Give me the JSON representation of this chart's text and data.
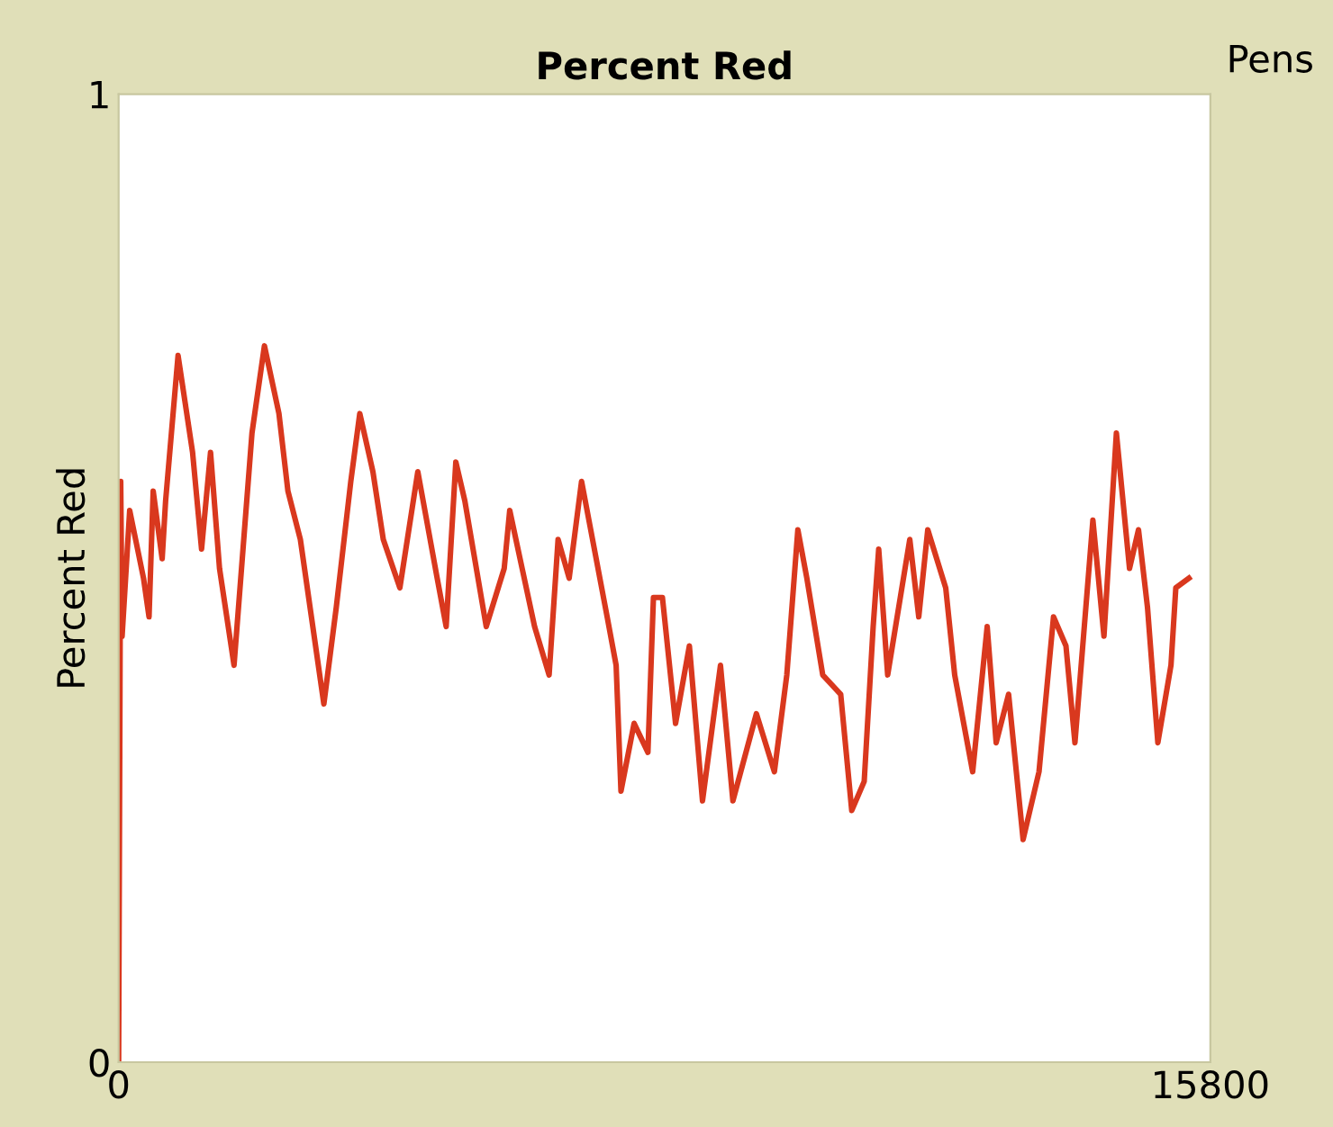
{
  "chart_data": {
    "type": "line",
    "title": "Percent Red",
    "ylabel": "Percent Red",
    "annotations": [
      "Pens"
    ],
    "x": [
      0,
      30,
      50,
      160,
      360,
      440,
      500,
      630,
      680,
      860,
      1070,
      1200,
      1330,
      1460,
      1670,
      1800,
      1930,
      2110,
      2320,
      2450,
      2630,
      2790,
      2970,
      3150,
      3360,
      3490,
      3680,
      3830,
      4070,
      4330,
      4610,
      4740,
      4880,
      5010,
      5320,
      5580,
      5660,
      5840,
      6020,
      6230,
      6360,
      6520,
      6700,
      7070,
      7200,
      7270,
      7460,
      7660,
      7740,
      7870,
      8060,
      8260,
      8450,
      8710,
      8890,
      9230,
      9490,
      9670,
      9830,
      9960,
      10190,
      10450,
      10610,
      10790,
      10920,
      11000,
      11130,
      11450,
      11580,
      11710,
      11970,
      12100,
      12360,
      12570,
      12700,
      12880,
      13090,
      13320,
      13530,
      13710,
      13840,
      14100,
      14260,
      14440,
      14630,
      14760,
      14890,
      15040,
      15230,
      15300,
      15490
    ],
    "series": [
      {
        "color": "#d9381e",
        "values": [
          0,
          0.6,
          0.44,
          0.57,
          0.5,
          0.46,
          0.59,
          0.52,
          0.58,
          0.73,
          0.63,
          0.53,
          0.63,
          0.51,
          0.41,
          0.53,
          0.65,
          0.74,
          0.67,
          0.59,
          0.54,
          0.46,
          0.37,
          0.47,
          0.6,
          0.67,
          0.61,
          0.54,
          0.49,
          0.61,
          0.5,
          0.45,
          0.62,
          0.58,
          0.45,
          0.51,
          0.57,
          0.51,
          0.45,
          0.4,
          0.54,
          0.5,
          0.6,
          0.46,
          0.41,
          0.28,
          0.35,
          0.32,
          0.48,
          0.48,
          0.35,
          0.43,
          0.27,
          0.41,
          0.27,
          0.36,
          0.3,
          0.4,
          0.55,
          0.5,
          0.4,
          0.38,
          0.26,
          0.29,
          0.45,
          0.53,
          0.4,
          0.54,
          0.46,
          0.55,
          0.49,
          0.4,
          0.3,
          0.45,
          0.33,
          0.38,
          0.23,
          0.3,
          0.46,
          0.43,
          0.33,
          0.56,
          0.44,
          0.65,
          0.51,
          0.55,
          0.47,
          0.33,
          0.41,
          0.49,
          0.5
        ]
      }
    ],
    "xlim": [
      0,
      15800
    ],
    "ylim": [
      0,
      1
    ],
    "xticks": [
      0,
      15800
    ],
    "yticks": [
      0,
      1
    ],
    "grid": false,
    "legend": false,
    "line_style": "solid"
  }
}
